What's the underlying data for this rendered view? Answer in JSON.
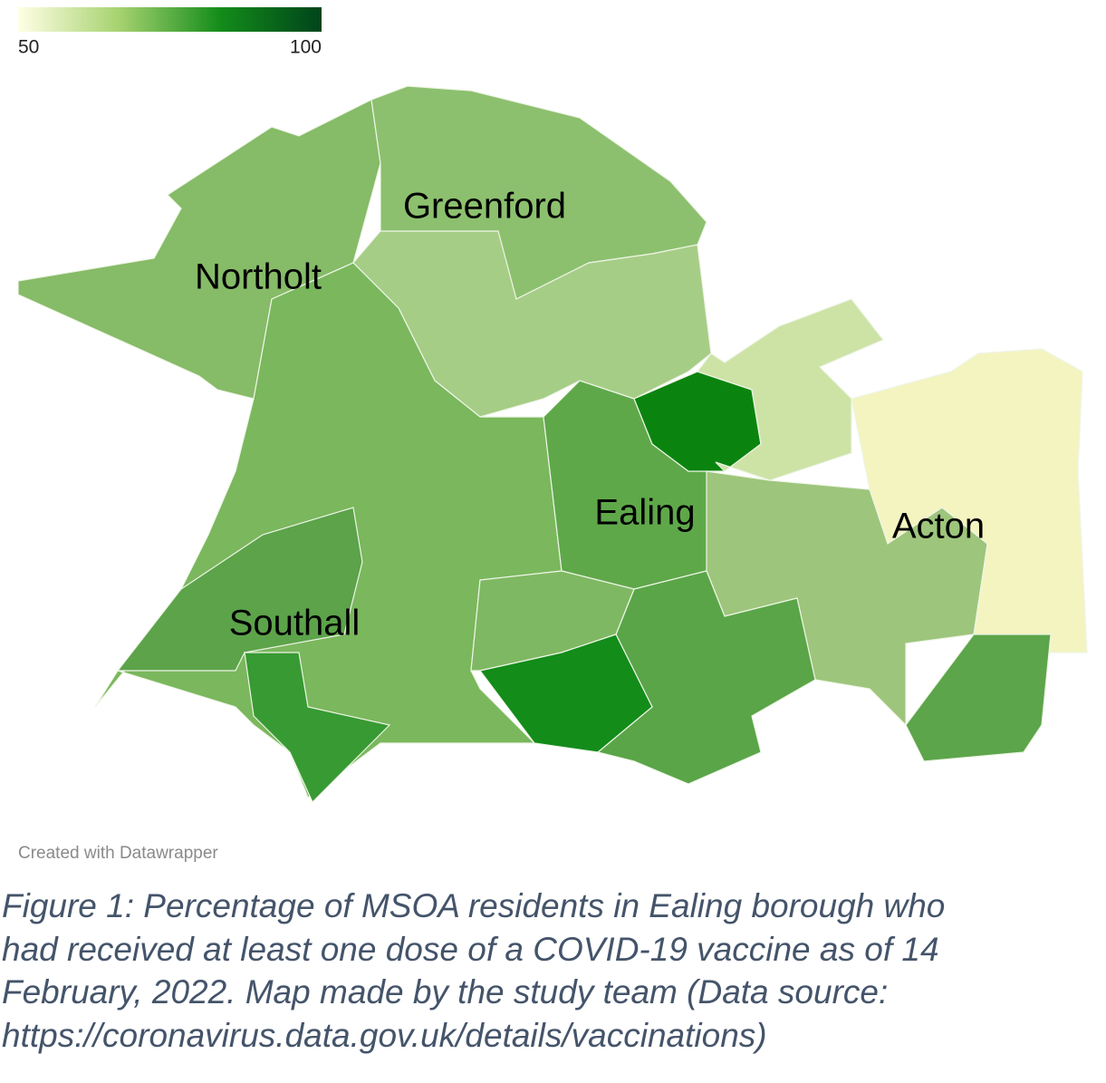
{
  "legend": {
    "ticks": [
      50,
      100
    ],
    "colors": [
      "#ffffe5",
      "#a6d26f",
      "#138c1a",
      "#00441b"
    ]
  },
  "map": {
    "places": [
      "Greenford",
      "Northolt",
      "Ealing",
      "Acton",
      "Southall"
    ]
  },
  "credit": "Created with Datawrapper",
  "caption": {
    "lines": [
      "Figure 1: Percentage of MSOA residents in Ealing borough who",
      "had received at least one dose of a COVID-19 vaccine as of 14",
      "February, 2022. Map made by the study team (Data source:",
      "https://coronavirus.data.gov.uk/details/vaccinations)"
    ]
  }
}
